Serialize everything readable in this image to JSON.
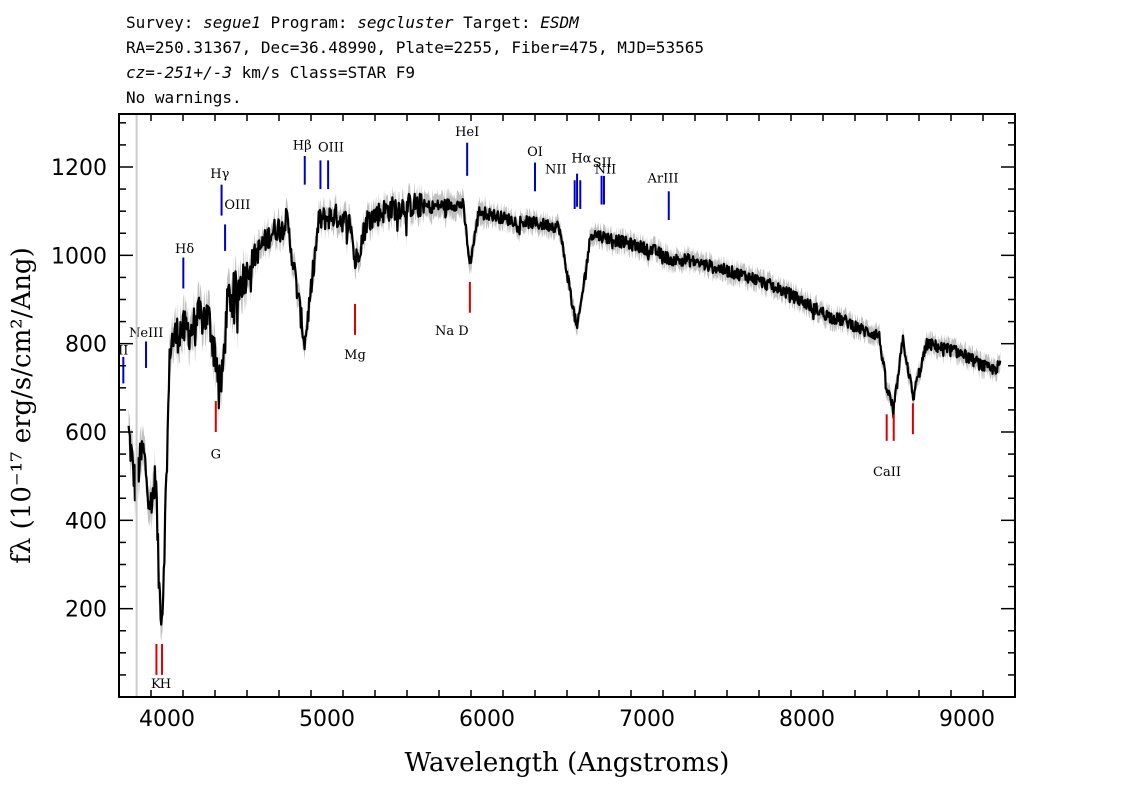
{
  "header": {
    "line1": [
      {
        "text": "Survey: ",
        "italic": false
      },
      {
        "text": "segue1",
        "italic": true
      },
      {
        "text": " Program: ",
        "italic": false
      },
      {
        "text": "segcluster",
        "italic": true
      },
      {
        "text": " Target: ",
        "italic": false
      },
      {
        "text": "ESDM",
        "italic": true
      }
    ],
    "line2": "RA=250.31367, Dec=36.48990, Plate=2255, Fiber=475, MJD=53565",
    "line3": [
      {
        "text": "cz=",
        "italic": true
      },
      {
        "text": "-251+/-3",
        "italic": true
      },
      {
        "text": " km/s Class=STAR F9",
        "italic": false
      }
    ],
    "line4": "No warnings."
  },
  "chart_data": {
    "type": "line",
    "xlabel": "Wavelength (Angstroms)",
    "ylabel": "fλ (10⁻¹⁷ erg/s/cm²/Ang)",
    "xlim": [
      3700,
      9300
    ],
    "ylim": [
      0,
      1320
    ],
    "x_ticks": [
      4000,
      5000,
      6000,
      7000,
      8000,
      9000
    ],
    "y_ticks": [
      200,
      400,
      600,
      800,
      1000,
      1200
    ],
    "colors": {
      "spectrum": "#000000",
      "error_band": "#bfbfbf",
      "emission": "#0000cc",
      "absorption": "#dd0000"
    },
    "continuum_points": [
      [
        3760,
        600
      ],
      [
        3800,
        480
      ],
      [
        3850,
        560
      ],
      [
        3900,
        430
      ],
      [
        3930,
        500
      ],
      [
        3950,
        250
      ],
      [
        3970,
        180
      ],
      [
        3990,
        420
      ],
      [
        4020,
        800
      ],
      [
        4080,
        830
      ],
      [
        4150,
        830
      ],
      [
        4200,
        860
      ],
      [
        4260,
        860
      ],
      [
        4300,
        780
      ],
      [
        4340,
        700
      ],
      [
        4380,
        900
      ],
      [
        4450,
        930
      ],
      [
        4550,
        1000
      ],
      [
        4650,
        1050
      ],
      [
        4750,
        1080
      ],
      [
        4861,
        800
      ],
      [
        4950,
        1080
      ],
      [
        5050,
        1090
      ],
      [
        5150,
        1070
      ],
      [
        5175,
        980
      ],
      [
        5250,
        1080
      ],
      [
        5350,
        1100
      ],
      [
        5450,
        1110
      ],
      [
        5550,
        1115
      ],
      [
        5650,
        1110
      ],
      [
        5750,
        1115
      ],
      [
        5850,
        1115
      ],
      [
        5893,
        980
      ],
      [
        5950,
        1100
      ],
      [
        6050,
        1090
      ],
      [
        6150,
        1080
      ],
      [
        6250,
        1075
      ],
      [
        6350,
        1070
      ],
      [
        6450,
        1065
      ],
      [
        6563,
        830
      ],
      [
        6650,
        1050
      ],
      [
        6750,
        1040
      ],
      [
        6850,
        1030
      ],
      [
        6950,
        1020
      ],
      [
        7050,
        1010
      ],
      [
        7150,
        990
      ],
      [
        7250,
        990
      ],
      [
        7350,
        980
      ],
      [
        7450,
        970
      ],
      [
        7550,
        960
      ],
      [
        7650,
        950
      ],
      [
        7750,
        935
      ],
      [
        7850,
        920
      ],
      [
        7950,
        900
      ],
      [
        8050,
        880
      ],
      [
        8150,
        860
      ],
      [
        8250,
        850
      ],
      [
        8350,
        830
      ],
      [
        8450,
        820
      ],
      [
        8498,
        700
      ],
      [
        8542,
        650
      ],
      [
        8600,
        810
      ],
      [
        8662,
        680
      ],
      [
        8750,
        800
      ],
      [
        8850,
        790
      ],
      [
        8950,
        780
      ],
      [
        9050,
        760
      ],
      [
        9150,
        740
      ],
      [
        9210,
        750
      ]
    ],
    "emission_lines": [
      {
        "label": "II",
        "x": 3727,
        "y1": 710,
        "y2": 770,
        "lx": 3727,
        "ly": 775
      },
      {
        "label": "NeIII",
        "x": 3869,
        "y1": 745,
        "y2": 805,
        "lx": 3870,
        "ly": 815
      },
      {
        "label": "Hδ",
        "x": 4102,
        "y1": 925,
        "y2": 995,
        "lx": 4110,
        "ly": 1005
      },
      {
        "label": "Hγ",
        "x": 4341,
        "y1": 1090,
        "y2": 1160,
        "lx": 4330,
        "ly": 1175
      },
      {
        "label": "OIII",
        "x": 4363,
        "y1": 1010,
        "y2": 1070,
        "lx": 4440,
        "ly": 1105
      },
      {
        "label": "Hβ",
        "x": 4861,
        "y1": 1160,
        "y2": 1225,
        "lx": 4845,
        "ly": 1240
      },
      {
        "label": "OIII",
        "x": 4959,
        "y1": 1150,
        "y2": 1215,
        "lx": 5025,
        "ly": 1235
      },
      {
        "label": "OIII",
        "x": 5007,
        "y1": 1150,
        "y2": 1215,
        "lx": null,
        "ly": null
      },
      {
        "label": "HeI",
        "x": 5876,
        "y1": 1180,
        "y2": 1255,
        "lx": 5876,
        "ly": 1270
      },
      {
        "label": "OI",
        "x": 6300,
        "y1": 1145,
        "y2": 1210,
        "lx": 6300,
        "ly": 1225
      },
      {
        "label": "NII",
        "x": 6548,
        "y1": 1105,
        "y2": 1170,
        "lx": 6430,
        "ly": 1185
      },
      {
        "label": "Hα",
        "x": 6563,
        "y1": 1110,
        "y2": 1185,
        "lx": 6590,
        "ly": 1210
      },
      {
        "label": "NII",
        "x": 6583,
        "y1": 1105,
        "y2": 1170,
        "lx": 6740,
        "ly": 1185
      },
      {
        "label": "SII",
        "x": 6716,
        "y1": 1115,
        "y2": 1180,
        "lx": 6720,
        "ly": 1200
      },
      {
        "label": "SII",
        "x": 6731,
        "y1": 1115,
        "y2": 1180,
        "lx": null,
        "ly": null
      },
      {
        "label": "ArIII",
        "x": 7136,
        "y1": 1080,
        "y2": 1145,
        "lx": 7100,
        "ly": 1165
      }
    ],
    "absorption_lines": [
      {
        "label": "K",
        "x": 3934,
        "y1": 50,
        "y2": 120,
        "lx": 3930,
        "ly": 20
      },
      {
        "label": "H",
        "x": 3969,
        "y1": 50,
        "y2": 120,
        "lx": 3990,
        "ly": 20
      },
      {
        "label": "G",
        "x": 4305,
        "y1": 600,
        "y2": 670,
        "lx": 4305,
        "ly": 540
      },
      {
        "label": "Mg",
        "x": 5175,
        "y1": 820,
        "y2": 890,
        "lx": 5175,
        "ly": 765
      },
      {
        "label": "Na  D",
        "x": 5893,
        "y1": 870,
        "y2": 940,
        "lx": 5780,
        "ly": 820
      },
      {
        "label": "CaII",
        "x": 8498,
        "y1": 580,
        "y2": 640,
        "lx": 8500,
        "ly": 500
      },
      {
        "label": "CaII",
        "x": 8542,
        "y1": 580,
        "y2": 640,
        "lx": null,
        "ly": null
      },
      {
        "label": "CaII",
        "x": 8662,
        "y1": 595,
        "y2": 665,
        "lx": null,
        "ly": null
      }
    ]
  }
}
